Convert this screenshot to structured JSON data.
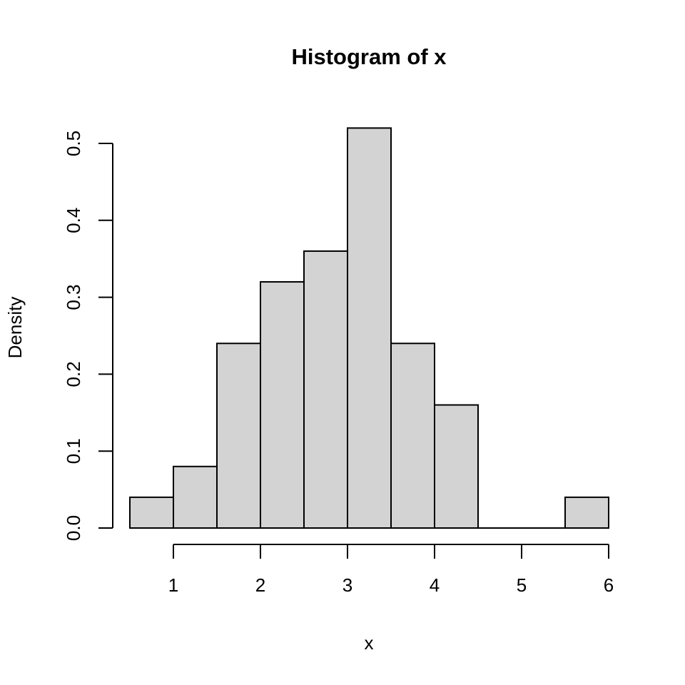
{
  "figure": {
    "background": "#ffffff"
  },
  "chart_data": {
    "type": "bar",
    "subtype": "histogram",
    "title": "Histogram of x",
    "xlabel": "x",
    "ylabel": "Density",
    "breaks": [
      0.5,
      1,
      1.5,
      2,
      2.5,
      3,
      3.5,
      4,
      4.5,
      5,
      5.5,
      6
    ],
    "densities": [
      0.04,
      0.08,
      0.24,
      0.32,
      0.36,
      0.52,
      0.24,
      0.16,
      0,
      0,
      0.04
    ],
    "x_ticks": [
      1,
      2,
      3,
      4,
      5,
      6
    ],
    "y_ticks": [
      "0.0",
      "0.1",
      "0.2",
      "0.3",
      "0.4",
      "0.5"
    ],
    "xlim": [
      0.5,
      6
    ],
    "ylim": [
      0,
      0.5
    ],
    "bar_fill": "#d3d3d3",
    "bar_stroke": "#000000",
    "axis_color": "#000000",
    "grid": false,
    "legend": false
  }
}
